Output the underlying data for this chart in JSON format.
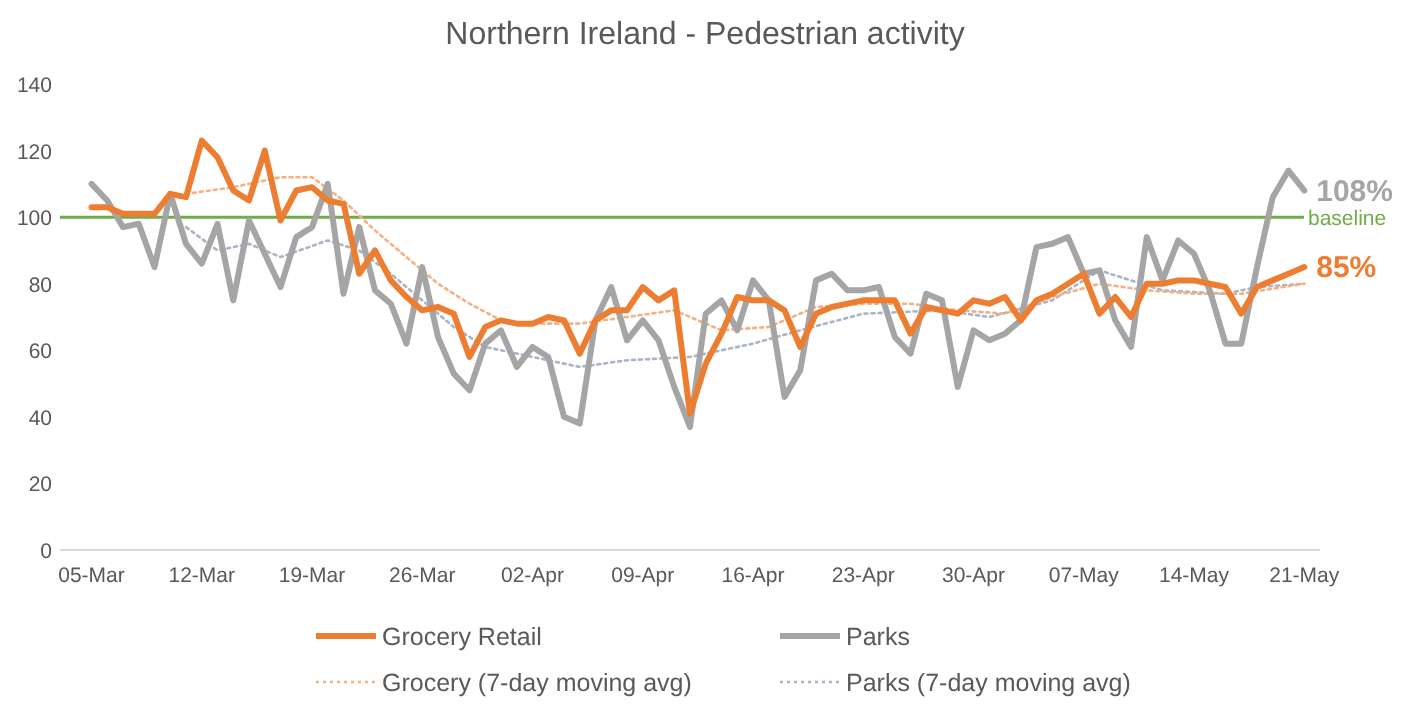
{
  "chart_data": {
    "type": "line",
    "title": "Northern Ireland - Pedestrian activity",
    "x": [
      "--03-05",
      "--03-06",
      "--03-07",
      "--03-08",
      "--03-09",
      "--03-10",
      "--03-11",
      "--03-12",
      "--03-13",
      "--03-14",
      "--03-15",
      "--03-16",
      "--03-17",
      "--03-18",
      "--03-19",
      "--03-20",
      "--03-21",
      "--03-22",
      "--03-23",
      "--03-24",
      "--03-25",
      "--03-26",
      "--03-27",
      "--03-28",
      "--03-29",
      "--03-30",
      "--03-31",
      "--04-01",
      "--04-02",
      "--04-03",
      "--04-04",
      "--04-05",
      "--04-06",
      "--04-07",
      "--04-08",
      "--04-09",
      "--04-10",
      "--04-11",
      "--04-12",
      "--04-13",
      "--04-14",
      "--04-15",
      "--04-16",
      "--04-17",
      "--04-18",
      "--04-19",
      "--04-20",
      "--04-21",
      "--04-22",
      "--04-23",
      "--04-24",
      "--04-25",
      "--04-26",
      "--04-27",
      "--04-28",
      "--04-29",
      "--04-30",
      "--05-01",
      "--05-02",
      "--05-03",
      "--05-04",
      "--05-05",
      "--05-06",
      "--05-07",
      "--05-08",
      "--05-09",
      "--05-10",
      "--05-11",
      "--05-12",
      "--05-13",
      "--05-14",
      "--05-15",
      "--05-16",
      "--05-17",
      "--05-18",
      "--05-19",
      "--05-20",
      "--05-21"
    ],
    "series": [
      {
        "name": "Grocery Retail",
        "color": "#ed7d31",
        "values": [
          103,
          103,
          101,
          101,
          101,
          107,
          106,
          123,
          118,
          108,
          105,
          120,
          99,
          108,
          109,
          105,
          104,
          83,
          90,
          81,
          76,
          72,
          73,
          71,
          58,
          67,
          69,
          68,
          68,
          70,
          69,
          59,
          69,
          72,
          72,
          79,
          75,
          78,
          41,
          56,
          65,
          76,
          75,
          75,
          72,
          61,
          71,
          73,
          74,
          75,
          75,
          75,
          65,
          73,
          72,
          71,
          75,
          74,
          76,
          69,
          75,
          77,
          80,
          83,
          71,
          76,
          70,
          80,
          80,
          81,
          81,
          80,
          79,
          71,
          79,
          81,
          83,
          85
        ]
      },
      {
        "name": "Parks",
        "color": "#a5a5a5",
        "values": [
          110,
          105,
          97,
          98,
          85,
          107,
          92,
          86,
          98,
          75,
          99,
          89,
          79,
          94,
          97,
          110,
          77,
          97,
          78,
          74,
          62,
          85,
          64,
          53,
          48,
          62,
          66,
          55,
          61,
          58,
          40,
          38,
          69,
          79,
          63,
          69,
          63,
          49,
          37,
          71,
          75,
          66,
          81,
          75,
          46,
          54,
          81,
          83,
          78,
          78,
          79,
          64,
          59,
          77,
          75,
          49,
          66,
          63,
          65,
          69,
          91,
          92,
          94,
          83,
          84,
          69,
          61,
          94,
          81,
          93,
          89,
          78,
          62,
          62,
          85,
          106,
          114,
          108
        ]
      },
      {
        "name": "Grocery (7-day moving avg)",
        "color": "#f4b183",
        "line_style": "dotted",
        "x": [
          "--03-11",
          "--03-14",
          "--03-17",
          "--03-19",
          "--03-21",
          "--03-23",
          "--03-25",
          "--03-27",
          "--03-29",
          "--03-31",
          "--04-02",
          "--04-05",
          "--04-08",
          "--04-11",
          "--04-14",
          "--04-17",
          "--04-20",
          "--04-23",
          "--04-26",
          "--04-29",
          "--05-02",
          "--05-05",
          "--05-08",
          "--05-11",
          "--05-14",
          "--05-17",
          "--05-21"
        ],
        "values": [
          107,
          109,
          112,
          112,
          105,
          96,
          88,
          80,
          74,
          69,
          68,
          68,
          70,
          72,
          66,
          67,
          73,
          74,
          74,
          72,
          71,
          76,
          80,
          78,
          77,
          77,
          80
        ]
      },
      {
        "name": "Parks (7-day moving avg)",
        "color": "#a9b4c8",
        "line_style": "dotted",
        "x": [
          "--03-11",
          "--03-13",
          "--03-15",
          "--03-17",
          "--03-20",
          "--03-22",
          "--03-24",
          "--03-26",
          "--03-28",
          "--03-30",
          "--04-05",
          "--04-08",
          "--04-12",
          "--04-16",
          "--04-19",
          "--04-23",
          "--04-28",
          "--05-01",
          "--05-05",
          "--05-08",
          "--05-12",
          "--05-16",
          "--05-18",
          "--05-21"
        ],
        "values": [
          97,
          90,
          92,
          88,
          93,
          90,
          83,
          75,
          67,
          61,
          55,
          57,
          58,
          62,
          66,
          71,
          72,
          70,
          75,
          84,
          78,
          77,
          79,
          80
        ]
      }
    ],
    "xlim": [
      "--03-03",
      "--05-22"
    ],
    "xticks": [
      {
        "value": "--03-05",
        "label": "05-Mar"
      },
      {
        "value": "--03-12",
        "label": "12-Mar"
      },
      {
        "value": "--03-19",
        "label": "19-Mar"
      },
      {
        "value": "--03-26",
        "label": "26-Mar"
      },
      {
        "value": "--04-02",
        "label": "02-Apr"
      },
      {
        "value": "--04-09",
        "label": "09-Apr"
      },
      {
        "value": "--04-16",
        "label": "16-Apr"
      },
      {
        "value": "--04-23",
        "label": "23-Apr"
      },
      {
        "value": "--04-30",
        "label": "30-Apr"
      },
      {
        "value": "--05-07",
        "label": "07-May"
      },
      {
        "value": "--05-14",
        "label": "14-May"
      },
      {
        "value": "--05-21",
        "label": "21-May"
      }
    ],
    "ylim": [
      0,
      140
    ],
    "yticks": [
      0,
      20,
      40,
      60,
      80,
      100,
      120,
      140
    ],
    "ref_lines": [
      {
        "axis": "y",
        "value": 100,
        "label": "baseline",
        "color": "#70ad47"
      }
    ],
    "annotations": [
      {
        "text": "108%",
        "x": "--05-21",
        "y": 108
      },
      {
        "text": "85%",
        "x": "--05-21",
        "y": 85
      }
    ],
    "grid": false,
    "legend": "bottom",
    "marker": "none",
    "line_style": "solid"
  }
}
